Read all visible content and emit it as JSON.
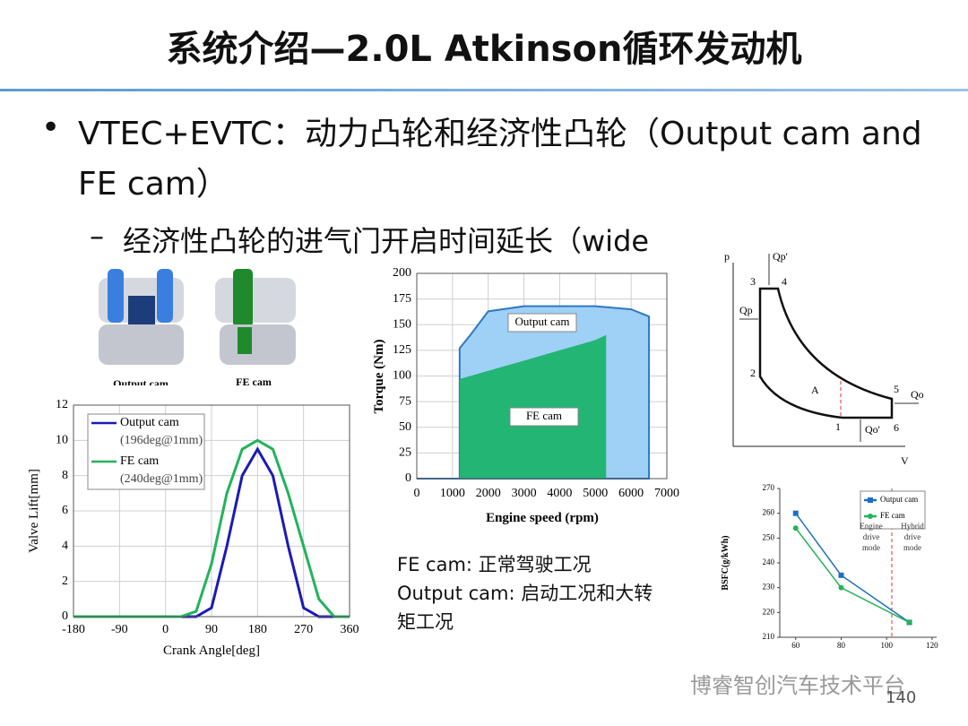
{
  "title": "系统介绍—2.0L Atkinson循环发动机",
  "bullet": "VTEC+EVTC：动力凸轮和经济性凸轮（Output cam and FE cam）",
  "sub_bullet": "经济性凸轮的进气门开启时间延长（wide",
  "cam_images": {
    "labels": [
      "Output cam",
      "FE cam"
    ]
  },
  "notes": [
    "FE cam: 正常驾驶工况",
    "Output cam: 启动工况和大转矩工况"
  ],
  "pv_diagram": {
    "labels": {
      "p": "p",
      "v": "V",
      "qp_prime": "Qp'",
      "qp": "Qp",
      "qo": "Qo",
      "qo_prime": "Qo'",
      "area": "A",
      "p1": "1",
      "p2": "2",
      "p3": "3",
      "p4": "4",
      "p5": "5",
      "p6": "6"
    }
  },
  "watermark": "博睿智创汽车技术平台",
  "page_number": "140",
  "chart_data": [
    {
      "type": "line",
      "xlabel": "Crank Angle[deg]",
      "ylabel": "Valve Lift[mm]",
      "xlim": [
        -180,
        360
      ],
      "xticks": [
        -180,
        -90,
        0,
        90,
        180,
        270,
        360
      ],
      "ylim": [
        0,
        12
      ],
      "yticks": [
        0,
        2,
        4,
        6,
        8,
        10,
        12
      ],
      "grid": true,
      "legend": "upper left",
      "series": [
        {
          "name": "Output cam",
          "legend_note": "(196deg@1mm)",
          "color": "#1a1ab8",
          "x": [
            -180,
            60,
            90,
            120,
            150,
            180,
            210,
            240,
            270,
            300,
            360
          ],
          "values": [
            0,
            0,
            0.5,
            4,
            8,
            9.5,
            8,
            4,
            0.5,
            0,
            0
          ]
        },
        {
          "name": "FE cam",
          "legend_note": "(240deg@1mm)",
          "color": "#22b35b",
          "x": [
            -180,
            30,
            60,
            90,
            120,
            150,
            180,
            210,
            240,
            270,
            300,
            330,
            360
          ],
          "values": [
            0,
            0,
            0.3,
            3,
            7,
            9.5,
            10,
            9.5,
            7,
            4,
            1,
            0,
            0
          ]
        }
      ]
    },
    {
      "type": "area",
      "xlabel": "Engine speed (rpm)",
      "ylabel": "Torque (Nm)",
      "xlim": [
        0,
        7000
      ],
      "xticks": [
        0,
        1000,
        2000,
        3000,
        4000,
        5000,
        6000,
        7000
      ],
      "ylim": [
        0,
        200
      ],
      "yticks": [
        0,
        25,
        50,
        75,
        100,
        125,
        150,
        175,
        200
      ],
      "grid": true,
      "series": [
        {
          "name": "Output cam",
          "color": "#9fd0f5",
          "x": [
            0,
            1200,
            1200,
            1500,
            2000,
            3000,
            5000,
            6000,
            6500,
            6500
          ],
          "values": [
            0,
            0,
            127,
            140,
            163,
            168,
            168,
            165,
            158,
            0
          ]
        },
        {
          "name": "FE cam",
          "color": "#22b573",
          "x": [
            1200,
            1200,
            2000,
            3000,
            4000,
            5000,
            5300,
            5300
          ],
          "values": [
            0,
            97,
            105,
            115,
            125,
            135,
            140,
            0
          ]
        }
      ]
    },
    {
      "type": "line",
      "ylabel": "BSFC(g/kWh)",
      "xlim": [
        53,
        122
      ],
      "xticks": [
        60,
        80,
        100,
        120
      ],
      "ylim": [
        210,
        270
      ],
      "yticks": [
        210,
        220,
        230,
        240,
        250,
        260,
        270
      ],
      "grid": false,
      "legend": "upper right",
      "annotations": [
        "Engine drive mode",
        "Hybrid drive mode"
      ],
      "series": [
        {
          "name": "Output cam",
          "color": "#1f6fbf",
          "marker": "square",
          "x": [
            60,
            80,
            110
          ],
          "values": [
            260,
            235,
            216
          ]
        },
        {
          "name": "FE cam",
          "color": "#22b35b",
          "marker": "circle",
          "x": [
            60,
            80,
            110
          ],
          "values": [
            254,
            230,
            216
          ]
        }
      ]
    }
  ]
}
